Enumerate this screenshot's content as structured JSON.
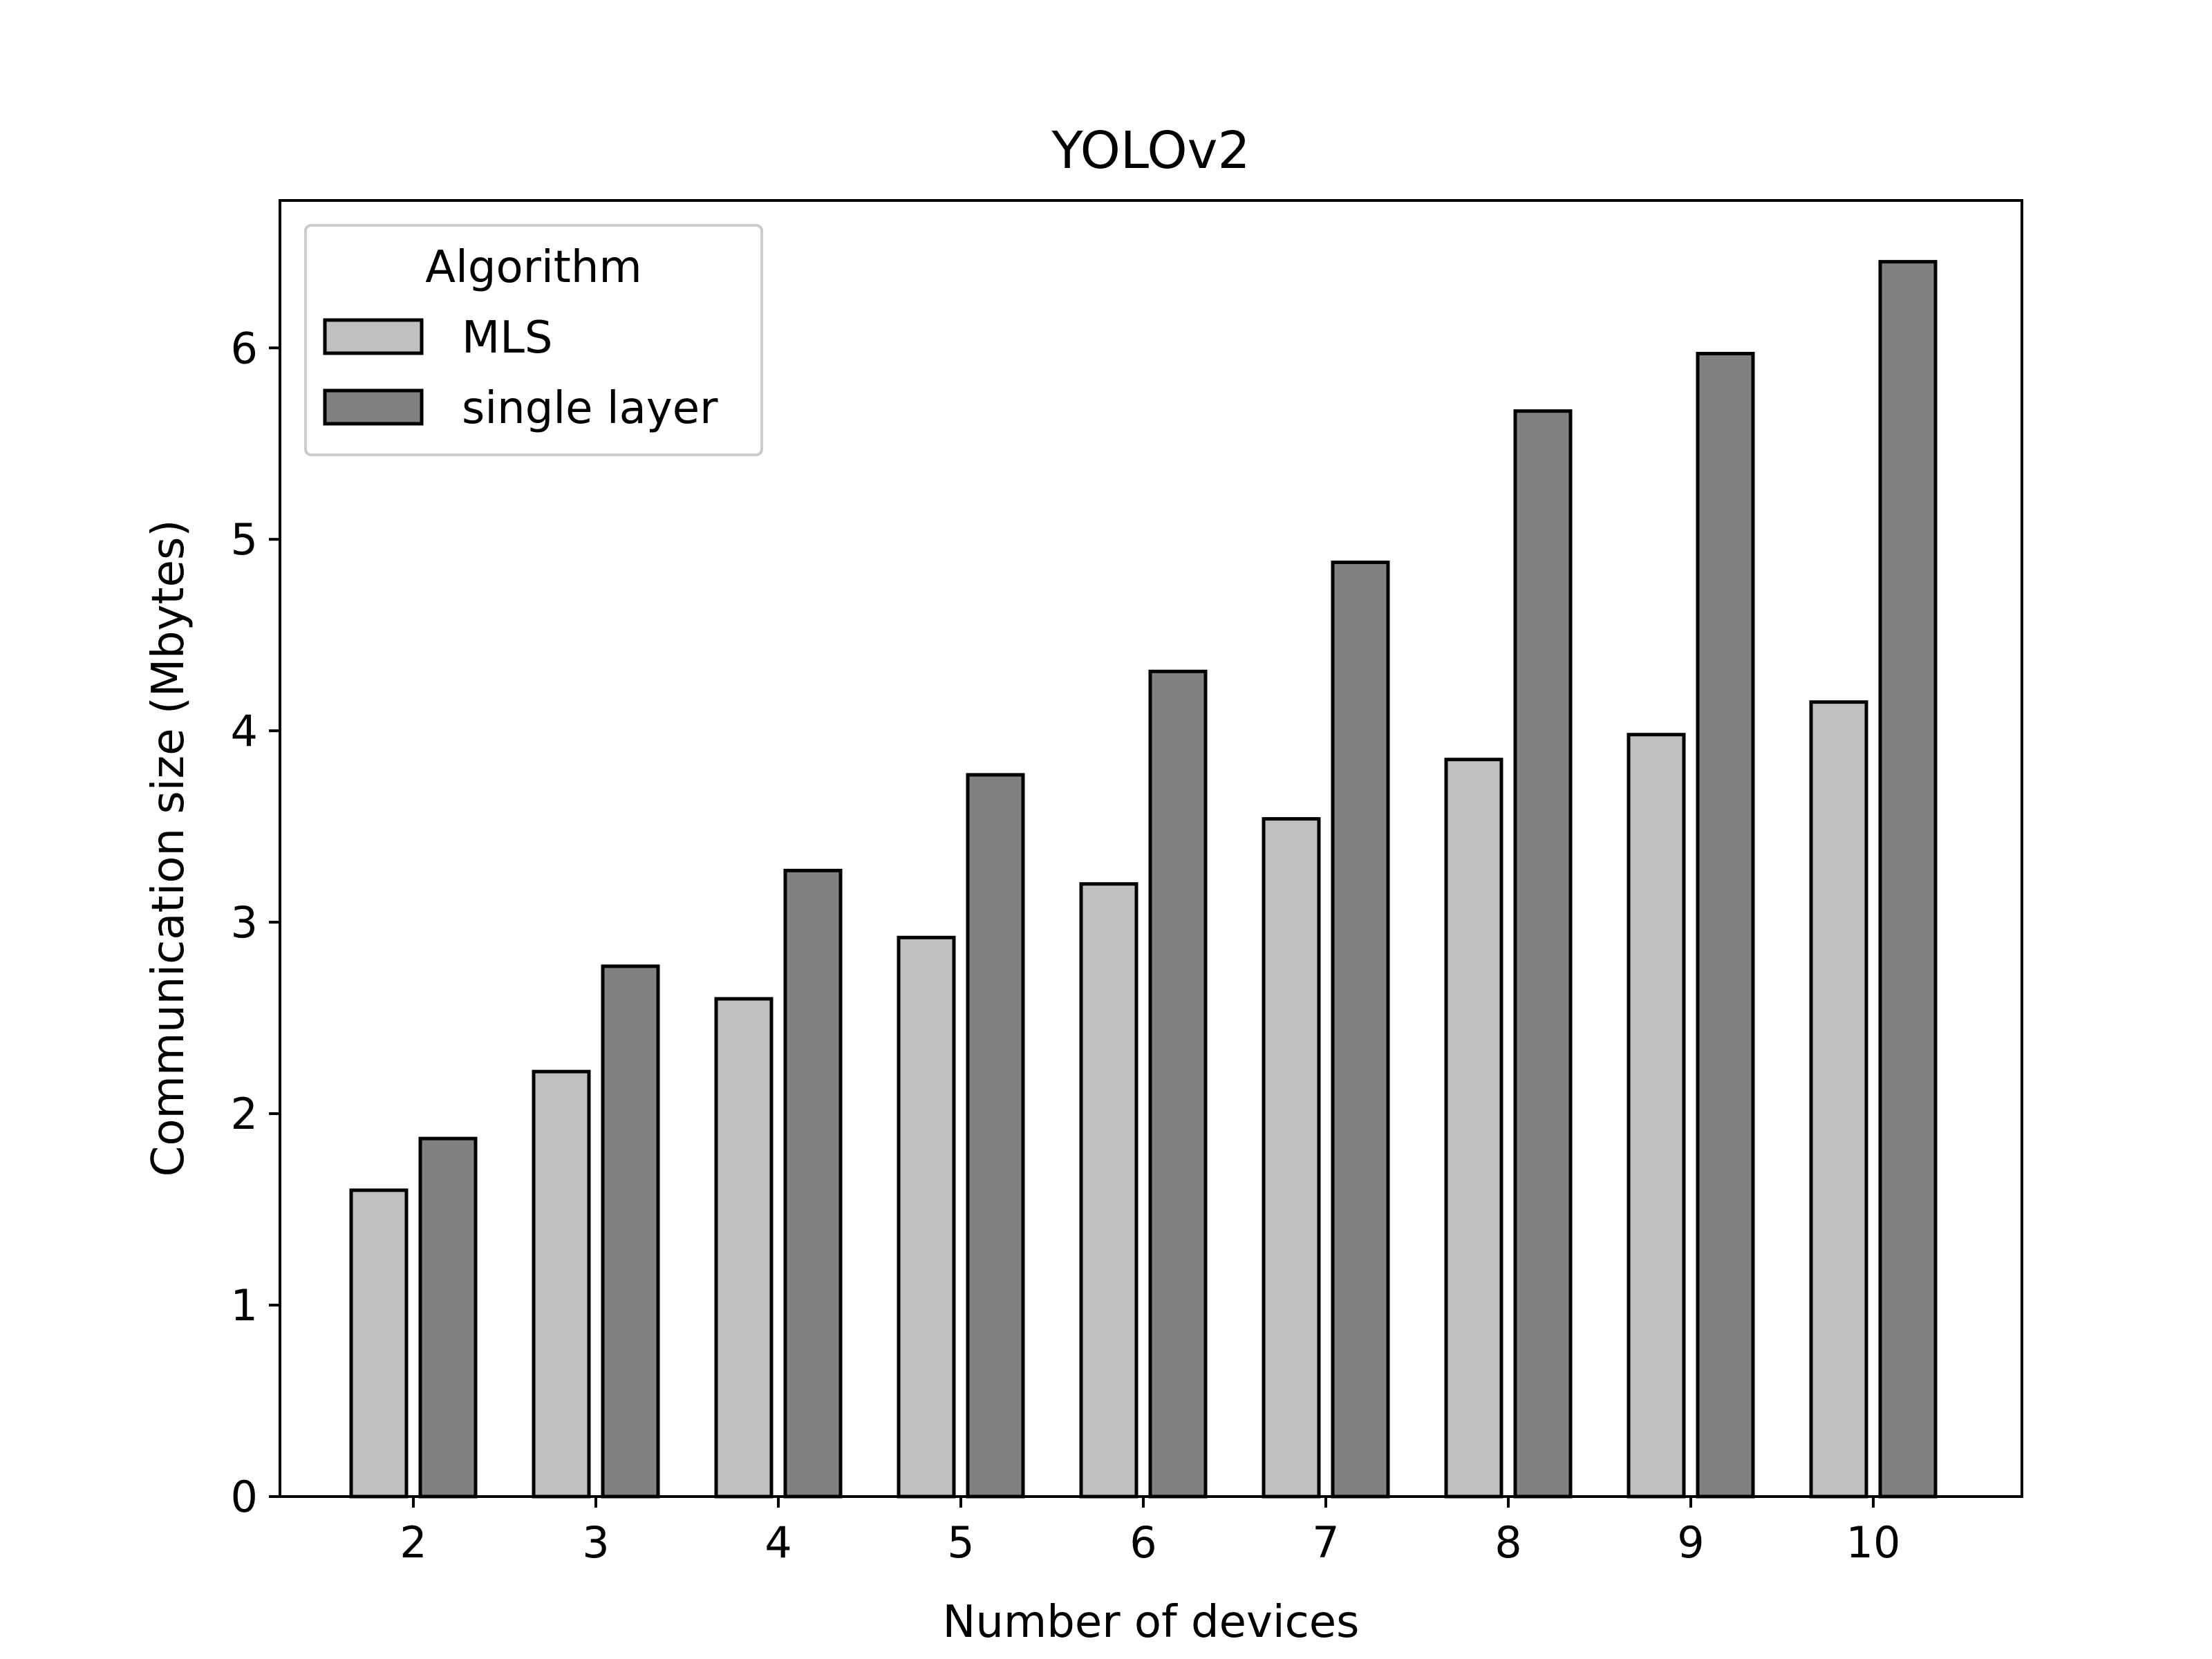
{
  "chart_data": {
    "type": "bar",
    "title": "YOLOv2",
    "xlabel": "Number of devices",
    "ylabel": "Communication size (Mbytes)",
    "categories": [
      "2",
      "3",
      "4",
      "5",
      "6",
      "7",
      "8",
      "9",
      "10"
    ],
    "yticks": [
      "0",
      "1",
      "2",
      "3",
      "4",
      "5",
      "6"
    ],
    "ylim": [
      0,
      6.77
    ],
    "grid": false,
    "legend": {
      "title": "Algorithm",
      "placement": "top-left"
    },
    "series": [
      {
        "name": "MLS",
        "color": "#c0c0c0",
        "values": [
          1.6,
          2.22,
          2.6,
          2.92,
          3.2,
          3.54,
          3.85,
          3.98,
          4.15
        ]
      },
      {
        "name": "single layer",
        "color": "#808080",
        "values": [
          1.87,
          2.77,
          3.27,
          3.77,
          4.31,
          4.88,
          5.67,
          5.97,
          6.45
        ]
      }
    ],
    "edge_color": "#000000"
  }
}
